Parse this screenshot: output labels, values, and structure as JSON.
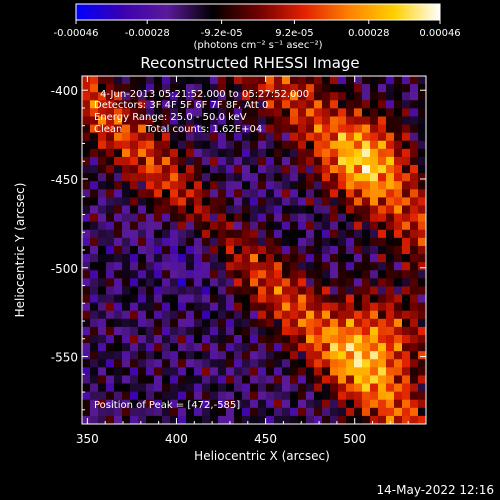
{
  "chart_data": {
    "type": "heatmap",
    "title": "Reconstructed RHESSI Image",
    "xlabel": "Heliocentric X (arcsec)",
    "ylabel": "Heliocentric Y (arcsec)",
    "xlim": [
      347,
      540
    ],
    "ylim": [
      -588,
      -392
    ],
    "xticks": [
      350,
      400,
      450,
      500
    ],
    "yticks": [
      -400,
      -450,
      -500,
      -550
    ],
    "colorbar": {
      "range": [
        -0.00046,
        0.00046
      ],
      "ticks": [
        "-0.00046",
        "-0.00028",
        "-9.2e-05",
        "9.2e-05",
        "0.00028",
        "0.00046"
      ],
      "tick_values": [
        -0.00046,
        -0.00028,
        -9.2e-05,
        9.2e-05,
        0.00028,
        0.00046
      ],
      "unit_label": "(photons cm⁻² s⁻¹ asec⁻²)",
      "colors": [
        "#0000ff",
        "#3a00b0",
        "#5a1a9a",
        "#000000",
        "#700000",
        "#e02000",
        "#ff8000",
        "#ffd000",
        "#ffffff"
      ]
    },
    "annotations": {
      "time_range": "4-Jun-2013 05:21:52.000 to 05:27:52.000",
      "detectors": "Detectors: 3F 4F 5F 6F 7F 8F, Att 0",
      "energy": "Energy Range: 25.0 - 50.0 keV",
      "method": "Clean",
      "total_counts": "Total counts: 1.62E+04",
      "peak": "Position of Peak = [472,-585]"
    },
    "peak_position": [
      472,
      -585
    ]
  },
  "footer": {
    "timestamp": "14-May-2022 12:16"
  }
}
